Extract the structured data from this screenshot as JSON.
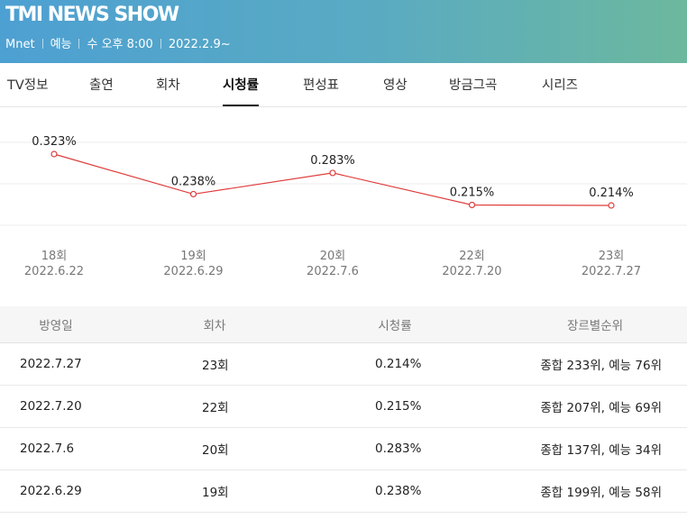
{
  "header": {
    "title": "TMI NEWS SHOW",
    "channel": "Mnet",
    "genre": "예능",
    "schedule": "수 오후 8:00",
    "start_date": "2022.2.9~"
  },
  "tabs": [
    {
      "label": "TV정보"
    },
    {
      "label": "출연"
    },
    {
      "label": "회차"
    },
    {
      "label": "시청률",
      "active": true
    },
    {
      "label": "편성표"
    },
    {
      "label": "영상"
    },
    {
      "label": "방금그곡"
    },
    {
      "label": "시리즈"
    }
  ],
  "chart_data": {
    "type": "line",
    "title": "",
    "xlabel": "",
    "ylabel": "",
    "grid": true,
    "line_color": "#e03c3c",
    "x": [
      {
        "episode": "18회",
        "date": "2022.6.22"
      },
      {
        "episode": "19회",
        "date": "2022.6.29"
      },
      {
        "episode": "20회",
        "date": "2022.7.6"
      },
      {
        "episode": "22회",
        "date": "2022.7.20"
      },
      {
        "episode": "23회",
        "date": "2022.7.27"
      }
    ],
    "values": [
      0.323,
      0.238,
      0.283,
      0.215,
      0.214
    ],
    "labels": [
      "0.323%",
      "0.238%",
      "0.283%",
      "0.215%",
      "0.214%"
    ]
  },
  "table": {
    "headers": {
      "date": "방영일",
      "episode": "회차",
      "rating": "시청률",
      "rank": "장르별순위"
    },
    "rows": [
      {
        "date": "2022.7.27",
        "episode": "23회",
        "rating": "0.214%",
        "rank": "종합 233위, 예능 76위"
      },
      {
        "date": "2022.7.20",
        "episode": "22회",
        "rating": "0.215%",
        "rank": "종합 207위, 예능 69위"
      },
      {
        "date": "2022.7.6",
        "episode": "20회",
        "rating": "0.283%",
        "rank": "종합 137위, 예능 34위"
      },
      {
        "date": "2022.6.29",
        "episode": "19회",
        "rating": "0.238%",
        "rank": "종합 199위, 예능 58위"
      }
    ]
  }
}
